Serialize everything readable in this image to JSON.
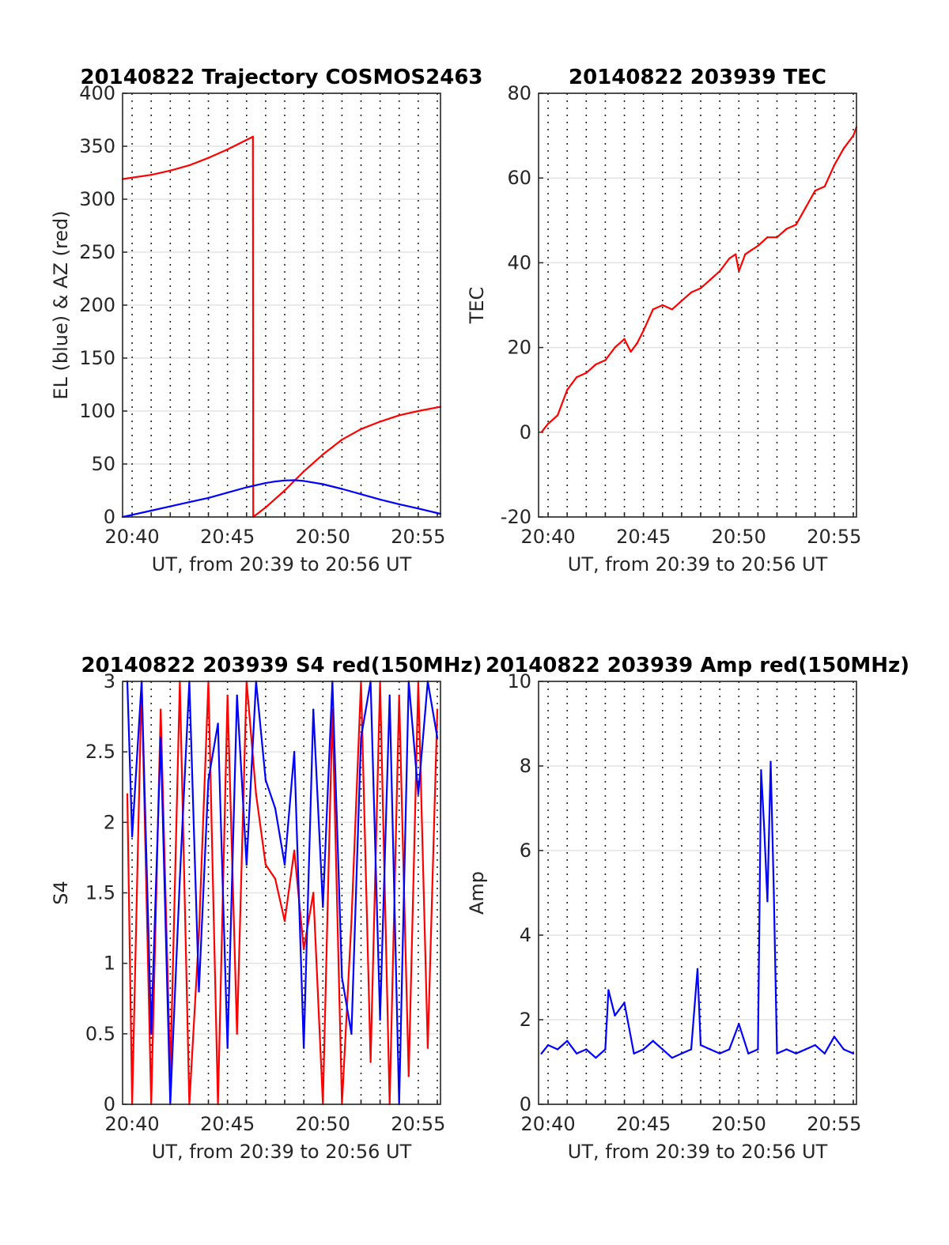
{
  "chart_data": [
    {
      "id": "trajectory",
      "type": "line",
      "title": "20140822 Trajectory COSMOS2463",
      "xlabel": "UT, from 20:39 to 20:56 UT",
      "ylabel": "EL (blue) & AZ (red)",
      "xlim": [
        "20:39:30",
        "20:56:10"
      ],
      "ylim": [
        0,
        400
      ],
      "xticks": [
        "20:40",
        "20:45",
        "20:50",
        "20:55"
      ],
      "yticks": [
        "0",
        "50",
        "100",
        "150",
        "200",
        "250",
        "300",
        "350",
        "400"
      ],
      "grid": "x dotted every 1 min, y solid light",
      "series": [
        {
          "color": "#ff0000",
          "x": [
            "20:39:30",
            "20:41:00",
            "20:42:00",
            "20:43:00",
            "20:44:00",
            "20:45:00",
            "20:46:00",
            "20:46:20",
            "20:46:21",
            "20:47:00",
            "20:48:00",
            "20:49:00",
            "20:50:00",
            "20:51:00",
            "20:52:00",
            "20:53:00",
            "20:54:00",
            "20:55:00",
            "20:56:10"
          ],
          "values": [
            319,
            323,
            327,
            332,
            339,
            347,
            356,
            359,
            0,
            9,
            25,
            43,
            59,
            73,
            83,
            90,
            96,
            100,
            104
          ]
        },
        {
          "color": "#0000ff",
          "x": [
            "20:39:30",
            "20:40:00",
            "20:41:00",
            "20:42:00",
            "20:43:00",
            "20:44:00",
            "20:45:00",
            "20:46:00",
            "20:47:00",
            "20:47:30",
            "20:48:00",
            "20:48:30",
            "20:49:00",
            "20:50:00",
            "20:51:00",
            "20:52:00",
            "20:53:00",
            "20:54:00",
            "20:55:00",
            "20:56:10"
          ],
          "values": [
            0,
            2,
            6,
            10,
            14,
            18,
            23,
            28,
            32,
            33.5,
            34.5,
            34.7,
            34,
            31,
            26.5,
            21.5,
            16.5,
            12,
            8,
            3
          ]
        }
      ]
    },
    {
      "id": "tec",
      "type": "line",
      "title": "20140822 203939 TEC",
      "xlabel": "UT, from 20:39 to 20:56 UT",
      "ylabel": "TEC",
      "xlim": [
        "20:39:30",
        "20:56:10"
      ],
      "ylim": [
        -20,
        80
      ],
      "xticks": [
        "20:40",
        "20:45",
        "20:50",
        "20:55"
      ],
      "yticks": [
        "-20",
        "0",
        "20",
        "40",
        "60",
        "80"
      ],
      "grid": "x dotted every 1 min, y solid light",
      "series": [
        {
          "color": "#ff0000",
          "x": [
            "20:39:39",
            "20:40:00",
            "20:40:30",
            "20:41:00",
            "20:41:30",
            "20:42:00",
            "20:42:30",
            "20:43:00",
            "20:43:30",
            "20:44:00",
            "20:44:20",
            "20:44:40",
            "20:45:00",
            "20:45:30",
            "20:46:00",
            "20:46:30",
            "20:47:00",
            "20:47:30",
            "20:48:00",
            "20:48:30",
            "20:49:00",
            "20:49:30",
            "20:49:50",
            "20:50:00",
            "20:50:20",
            "20:50:40",
            "20:51:00",
            "20:51:30",
            "20:52:00",
            "20:52:30",
            "20:53:00",
            "20:53:30",
            "20:54:00",
            "20:54:30",
            "20:55:00",
            "20:55:30",
            "20:56:00",
            "20:56:10"
          ],
          "values": [
            0,
            2,
            4,
            10,
            13,
            14,
            16,
            17,
            20,
            22,
            19,
            21,
            24,
            29,
            30,
            29,
            31,
            33,
            34,
            36,
            38,
            41,
            42,
            38,
            42,
            43,
            44,
            46,
            46,
            48,
            49,
            53,
            57,
            58,
            63,
            67,
            70,
            72
          ]
        }
      ]
    },
    {
      "id": "s4",
      "type": "line",
      "title": "20140822 203939 S4 red(150MHz)",
      "xlabel": "UT, from 20:39 to 20:56 UT",
      "ylabel": "S4",
      "xlim": [
        "20:39:30",
        "20:56:10"
      ],
      "ylim": [
        0,
        3
      ],
      "xticks": [
        "20:40",
        "20:45",
        "20:50",
        "20:55"
      ],
      "yticks": [
        "0",
        "0.5",
        "1",
        "1.5",
        "2",
        "2.5",
        "3"
      ],
      "grid": "x dotted every 1 min, y solid light",
      "series": [
        {
          "color": "#ff0000",
          "x": [
            "20:39:45",
            "20:40:00",
            "20:40:30",
            "20:41:00",
            "20:41:30",
            "20:42:00",
            "20:42:30",
            "20:43:00",
            "20:43:30",
            "20:44:00",
            "20:44:30",
            "20:45:00",
            "20:45:30",
            "20:46:00",
            "20:46:30",
            "20:47:00",
            "20:47:30",
            "20:48:00",
            "20:48:30",
            "20:49:00",
            "20:49:30",
            "20:50:00",
            "20:50:30",
            "20:51:00",
            "20:51:30",
            "20:52:00",
            "20:52:30",
            "20:53:00",
            "20:53:30",
            "20:54:00",
            "20:54:30",
            "20:55:00",
            "20:55:30",
            "20:56:00"
          ],
          "values": [
            2.2,
            0,
            3,
            0,
            2.8,
            0.2,
            3,
            0,
            1.2,
            3,
            0,
            2.9,
            0.5,
            3,
            2.2,
            1.7,
            1.6,
            1.3,
            1.8,
            1.1,
            1.5,
            0,
            2.8,
            0,
            1.3,
            3,
            0.3,
            3,
            0,
            2.9,
            0.2,
            3,
            0.4,
            2.8
          ]
        },
        {
          "color": "#0000ff",
          "x": [
            "20:39:45",
            "20:40:00",
            "20:40:30",
            "20:41:00",
            "20:41:30",
            "20:42:00",
            "20:42:30",
            "20:43:00",
            "20:43:30",
            "20:44:00",
            "20:44:30",
            "20:45:00",
            "20:45:30",
            "20:46:00",
            "20:46:30",
            "20:47:00",
            "20:47:30",
            "20:48:00",
            "20:48:30",
            "20:49:00",
            "20:49:30",
            "20:50:00",
            "20:50:30",
            "20:51:00",
            "20:51:30",
            "20:52:00",
            "20:52:30",
            "20:53:00",
            "20:53:30",
            "20:54:00",
            "20:54:30",
            "20:55:00",
            "20:55:30",
            "20:56:00"
          ],
          "values": [
            3,
            1.9,
            3,
            0.5,
            2.6,
            0,
            1.6,
            3,
            0.8,
            2.3,
            2.7,
            0.4,
            2.9,
            1.7,
            3,
            2.3,
            2.1,
            1.7,
            2.5,
            0.4,
            2.8,
            1.4,
            3,
            0.9,
            0.5,
            2.6,
            3,
            0.6,
            2.9,
            0,
            3,
            2.2,
            3,
            2.6
          ]
        }
      ]
    },
    {
      "id": "amp",
      "type": "line",
      "title": "20140822 203939 Amp red(150MHz)",
      "xlabel": "UT, from 20:39 to 20:56 UT",
      "ylabel": "Amp",
      "xlim": [
        "20:39:30",
        "20:56:10"
      ],
      "ylim": [
        0,
        10
      ],
      "xticks": [
        "20:40",
        "20:45",
        "20:50",
        "20:55"
      ],
      "yticks": [
        "0",
        "2",
        "4",
        "6",
        "8",
        "10"
      ],
      "grid": "x dotted every 1 min, y solid light",
      "series": [
        {
          "color": "#0000ff",
          "x": [
            "20:39:39",
            "20:40:00",
            "20:40:30",
            "20:41:00",
            "20:41:30",
            "20:42:00",
            "20:42:30",
            "20:43:00",
            "20:43:10",
            "20:43:30",
            "20:44:00",
            "20:44:30",
            "20:45:00",
            "20:45:30",
            "20:46:00",
            "20:46:30",
            "20:47:00",
            "20:47:30",
            "20:47:50",
            "20:48:00",
            "20:48:30",
            "20:49:00",
            "20:49:30",
            "20:50:00",
            "20:50:30",
            "20:51:00",
            "20:51:10",
            "20:51:20",
            "20:51:30",
            "20:51:40",
            "20:51:50",
            "20:52:00",
            "20:52:30",
            "20:53:00",
            "20:53:30",
            "20:54:00",
            "20:54:30",
            "20:55:00",
            "20:55:30",
            "20:56:00"
          ],
          "values": [
            1.2,
            1.4,
            1.3,
            1.5,
            1.2,
            1.3,
            1.1,
            1.3,
            2.7,
            2.1,
            2.4,
            1.2,
            1.3,
            1.5,
            1.3,
            1.1,
            1.2,
            1.3,
            3.2,
            1.4,
            1.3,
            1.2,
            1.3,
            1.9,
            1.2,
            1.3,
            7.9,
            6.5,
            4.8,
            8.1,
            5.0,
            1.2,
            1.3,
            1.2,
            1.3,
            1.4,
            1.2,
            1.6,
            1.3,
            1.2
          ]
        }
      ]
    }
  ]
}
